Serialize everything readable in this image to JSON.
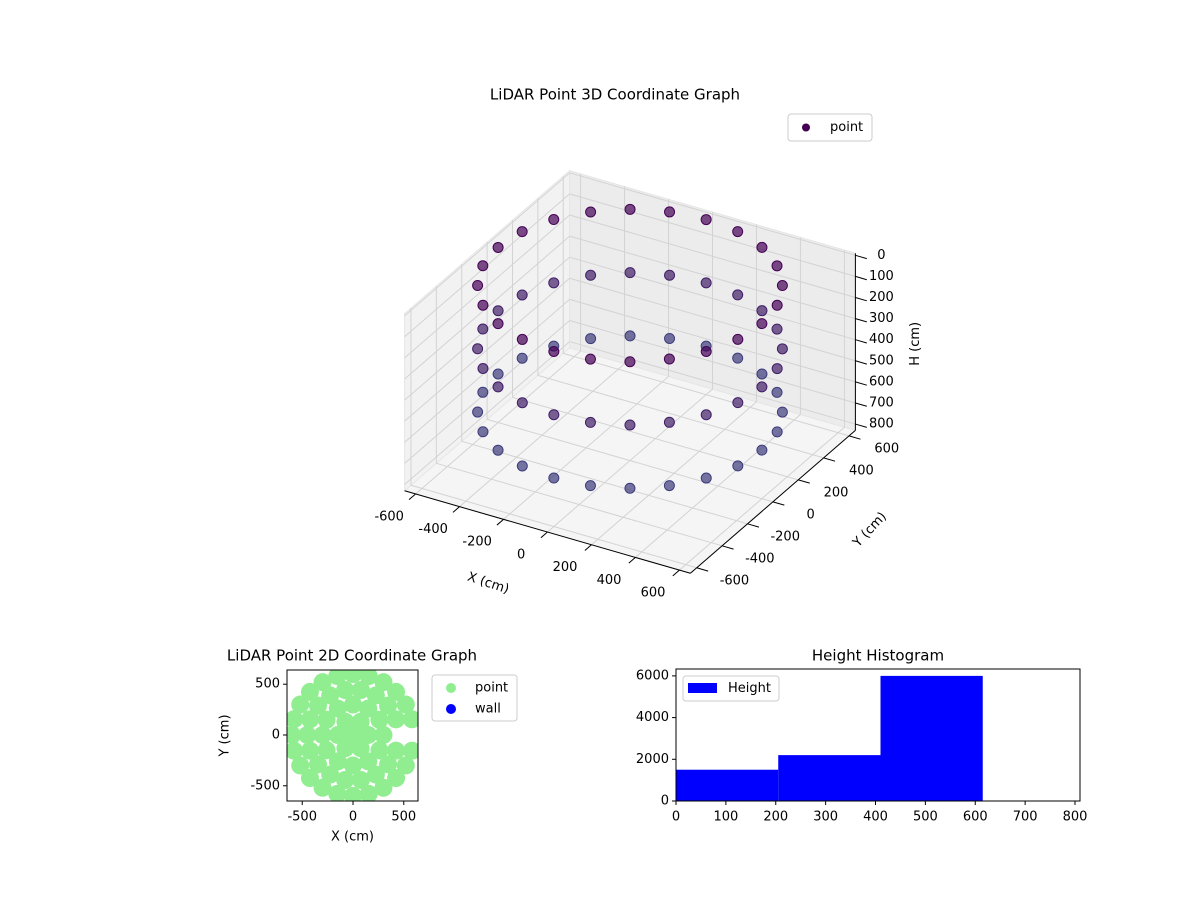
{
  "chart_data": [
    {
      "type": "scatter3d",
      "title": "LiDAR Point 3D Coordinate Graph",
      "xlabel": "X (cm)",
      "ylabel": "Y (cm)",
      "zlabel": "H (cm)",
      "xlim": [
        -650,
        650
      ],
      "ylim": [
        -650,
        650
      ],
      "zlim": [
        830,
        -10
      ],
      "xticks": [
        -600,
        -400,
        -200,
        0,
        200,
        400,
        600
      ],
      "yticks": [
        -600,
        -400,
        -200,
        0,
        200,
        400,
        600
      ],
      "zticks": [
        0,
        100,
        200,
        300,
        400,
        500,
        600,
        700,
        800
      ],
      "colormap": [
        "#440154",
        "#3b528b"
      ],
      "legend": "upper right",
      "series": [
        {
          "name": "point",
          "color": "#440154",
          "x": [
            600,
            580,
            520,
            424,
            300,
            155,
            0,
            -155,
            -300,
            -424,
            -520,
            -580,
            -600,
            -580,
            -520,
            -424,
            -300,
            -155,
            0,
            155,
            300,
            424,
            520,
            580,
            600,
            580,
            520,
            424,
            300,
            155,
            0,
            -155,
            -300,
            -424,
            -520,
            -580,
            -600,
            -580,
            -520,
            -424,
            -300,
            -155,
            0,
            155,
            300,
            424,
            520,
            580,
            600,
            580,
            520,
            424,
            300,
            155,
            0,
            -155,
            -300,
            -424,
            -520,
            -580,
            -600,
            -580,
            -520,
            -424,
            -300,
            -155,
            0,
            155,
            300,
            424,
            520,
            580
          ],
          "y": [
            0,
            155,
            300,
            424,
            520,
            580,
            600,
            580,
            520,
            424,
            300,
            155,
            0,
            -155,
            -300,
            -424,
            -520,
            -580,
            -600,
            -580,
            -520,
            -424,
            -300,
            -155,
            0,
            155,
            300,
            424,
            520,
            580,
            600,
            580,
            520,
            424,
            300,
            155,
            0,
            -155,
            -300,
            -424,
            -520,
            -580,
            -600,
            -580,
            -520,
            -424,
            -300,
            -155,
            0,
            155,
            300,
            424,
            520,
            580,
            600,
            580,
            520,
            424,
            300,
            155,
            0,
            -155,
            -300,
            -424,
            -520,
            -580,
            -600,
            -580,
            -520,
            -424,
            -300,
            -155
          ],
          "z": [
            0,
            0,
            0,
            0,
            0,
            0,
            0,
            0,
            0,
            0,
            0,
            0,
            0,
            0,
            0,
            0,
            0,
            0,
            0,
            0,
            0,
            0,
            0,
            0,
            300,
            300,
            300,
            300,
            300,
            300,
            300,
            300,
            300,
            300,
            300,
            300,
            300,
            300,
            300,
            300,
            300,
            300,
            300,
            300,
            300,
            300,
            300,
            300,
            600,
            600,
            600,
            600,
            600,
            600,
            600,
            600,
            600,
            600,
            600,
            600,
            600,
            600,
            600,
            600,
            600,
            600,
            600,
            600,
            600,
            600,
            600,
            600
          ]
        }
      ]
    },
    {
      "type": "scatter",
      "title": "LiDAR Point 2D Coordinate Graph",
      "xlabel": "X (cm)",
      "ylabel": "Y (cm)",
      "xlim": [
        -650,
        640
      ],
      "ylim": [
        -650,
        640
      ],
      "xticks": [
        -500,
        0,
        500
      ],
      "yticks": [
        -500,
        0,
        500
      ],
      "legend": "outside right",
      "series": [
        {
          "name": "point",
          "color": "#90ee90",
          "x": [
            580,
            520,
            424,
            300,
            155,
            0,
            -155,
            -300,
            -424,
            -520,
            -580,
            -600,
            -580,
            -520,
            -424,
            -300,
            -155,
            0,
            155,
            300,
            424,
            520,
            580,
            423,
            345,
            225,
            78,
            -78,
            -225,
            -345,
            -423,
            -450,
            -423,
            -345,
            -225,
            -78,
            78,
            225,
            345,
            423,
            300,
            260,
            150,
            0,
            -150,
            -260,
            -300,
            -260,
            -150,
            0,
            150,
            260,
            150,
            75,
            -75,
            -150,
            -75,
            75,
            0
          ],
          "y": [
            155,
            300,
            424,
            520,
            580,
            600,
            580,
            520,
            424,
            300,
            155,
            0,
            -155,
            -300,
            -424,
            -520,
            -580,
            -600,
            -580,
            -520,
            -424,
            -300,
            -155,
            154,
            289,
            390,
            443,
            443,
            390,
            289,
            154,
            0,
            -154,
            -289,
            -390,
            -443,
            -443,
            -390,
            -289,
            -154,
            0,
            150,
            260,
            300,
            260,
            150,
            0,
            -150,
            -260,
            -300,
            -260,
            -150,
            0,
            130,
            130,
            0,
            -130,
            -130,
            0
          ]
        },
        {
          "name": "wall",
          "color": "#0000ff",
          "x": [],
          "y": []
        }
      ]
    },
    {
      "type": "histogram",
      "title": "Height Histogram",
      "name": "Height",
      "color": "#0000ff",
      "bins": [
        0,
        205,
        410,
        615,
        810
      ],
      "values": [
        1500,
        2200,
        6000,
        0
      ],
      "xlim": [
        0,
        810
      ],
      "ylim": [
        0,
        6330
      ],
      "xticks": [
        0,
        100,
        200,
        300,
        400,
        500,
        600,
        700,
        800
      ],
      "yticks": [
        0,
        2000,
        4000,
        6000
      ],
      "legend": "upper left"
    }
  ]
}
